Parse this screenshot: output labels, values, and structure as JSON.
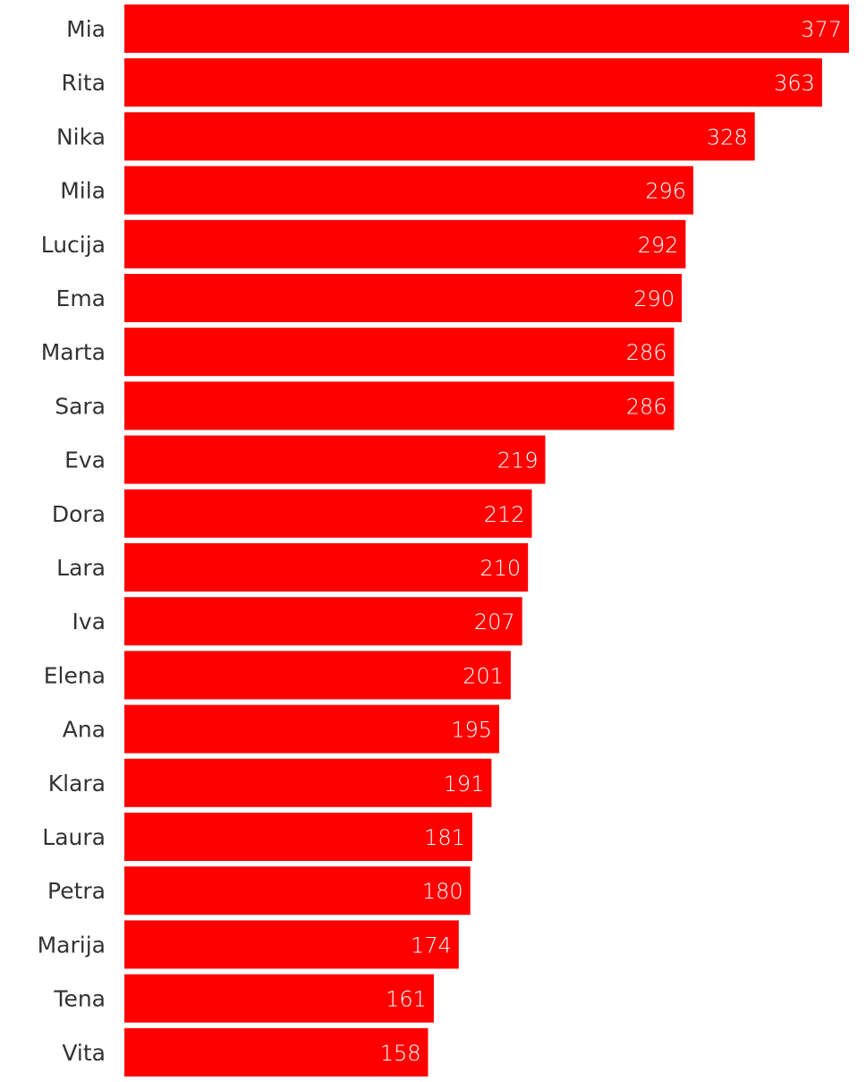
{
  "chart_data": {
    "type": "bar",
    "orientation": "horizontal",
    "categories": [
      "Mia",
      "Rita",
      "Nika",
      "Mila",
      "Lucija",
      "Ema",
      "Marta",
      "Sara",
      "Eva",
      "Dora",
      "Lara",
      "Iva",
      "Elena",
      "Ana",
      "Klara",
      "Laura",
      "Petra",
      "Marija",
      "Tena",
      "Vita"
    ],
    "values": [
      377,
      363,
      328,
      296,
      292,
      290,
      286,
      286,
      219,
      212,
      210,
      207,
      201,
      195,
      191,
      181,
      180,
      174,
      161,
      158
    ],
    "xlim": [
      0,
      377
    ],
    "grid": false,
    "legend": "none",
    "bar_color": "#ff0000",
    "label_color": "#ffffff"
  }
}
